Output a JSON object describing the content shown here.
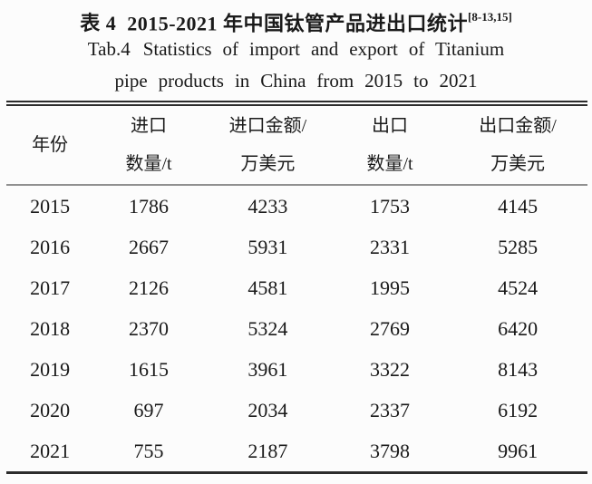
{
  "caption": {
    "zh_label": "表 4",
    "zh_title": "2015-2021 年中国钛管产品进出口统计",
    "citation": "[8-13,15]",
    "en_label": "Tab.4",
    "en_line1_rest": "Statistics of import and export of Titanium",
    "en_line2": "pipe products in China from 2015 to 2021"
  },
  "table": {
    "columns": [
      {
        "line1": "年份",
        "line2": ""
      },
      {
        "line1": "进口",
        "line2": "数量/t"
      },
      {
        "line1": "进口金额/",
        "line2": "万美元"
      },
      {
        "line1": "出口",
        "line2": "数量/t"
      },
      {
        "line1": "出口金额/",
        "line2": "万美元"
      }
    ],
    "rows": [
      [
        "2015",
        "1786",
        "4233",
        "1753",
        "4145"
      ],
      [
        "2016",
        "2667",
        "5931",
        "2331",
        "5285"
      ],
      [
        "2017",
        "2126",
        "4581",
        "1995",
        "4524"
      ],
      [
        "2018",
        "2370",
        "5324",
        "2769",
        "6420"
      ],
      [
        "2019",
        "1615",
        "3961",
        "3322",
        "8143"
      ],
      [
        "2020",
        "697",
        "2034",
        "2337",
        "6192"
      ],
      [
        "2021",
        "755",
        "2187",
        "3798",
        "9961"
      ]
    ]
  },
  "colors": {
    "text": "#1a1a1a",
    "rule_dark": "#2c2c2c",
    "rule_gray": "#909090",
    "background": "#fcfcfc"
  }
}
